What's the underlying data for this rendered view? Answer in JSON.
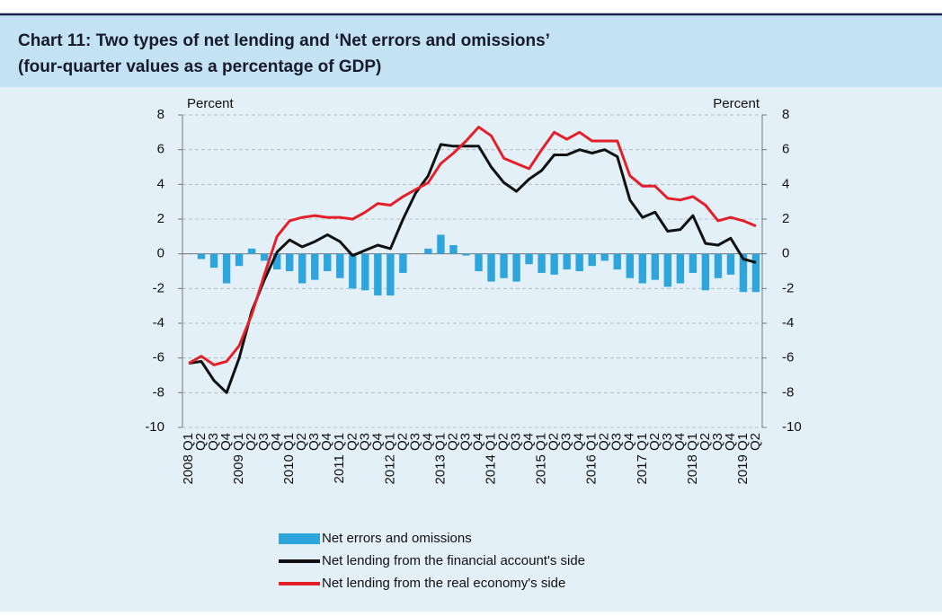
{
  "chart_data": {
    "type": "bar_line",
    "title": "Chart 11: Two types of net lending and ‘Net errors and omissions’",
    "subtitle": "(four-quarter values as a percentage of GDP)",
    "y_label": "Percent",
    "y2_label": "Percent",
    "categories": [
      "2008 Q1",
      "Q2",
      "Q3",
      "Q4",
      "2009 Q1",
      "Q2",
      "Q3",
      "Q4",
      "2010 Q1",
      "Q2",
      "Q3",
      "Q4",
      "2011 Q1",
      "Q2",
      "Q3",
      "Q4",
      "2012 Q1",
      "Q2",
      "Q3",
      "Q4",
      "2013 Q1",
      "Q2",
      "Q3",
      "Q4",
      "2014 Q1",
      "Q2",
      "Q3",
      "Q4",
      "2015 Q1",
      "Q2",
      "Q3",
      "Q4",
      "2016 Q1",
      "Q2",
      "Q3",
      "Q4",
      "2017 Q1",
      "Q2",
      "Q3",
      "Q4",
      "2018 Q1",
      "Q2",
      "Q3",
      "Q4",
      "2019 Q1",
      "Q2"
    ],
    "series": [
      {
        "name": "Net errors and omissions",
        "type": "bar",
        "color": "#2ea6dc",
        "values": [
          0,
          -0.3,
          -0.8,
          -1.7,
          -0.7,
          0.3,
          -0.4,
          -0.9,
          -1.0,
          -1.7,
          -1.5,
          -1.0,
          -1.4,
          -2.0,
          -2.1,
          -2.4,
          -2.4,
          -1.1,
          0,
          0.3,
          1.1,
          0.5,
          -0.1,
          -1.0,
          -1.6,
          -1.4,
          -1.6,
          -0.6,
          -1.1,
          -1.2,
          -0.9,
          -1.0,
          -0.7,
          -0.4,
          -0.9,
          -1.4,
          -1.7,
          -1.5,
          -1.9,
          -1.7,
          -1.1,
          -2.1,
          -1.4,
          -1.2,
          -2.2,
          -2.2
        ]
      },
      {
        "name": "Net lending from the financial account's side",
        "type": "line",
        "color": "#111111",
        "values": [
          -6.3,
          -6.2,
          -7.3,
          -8.0,
          -6.0,
          -3.3,
          -1.5,
          0.1,
          0.8,
          0.4,
          0.7,
          1.1,
          0.7,
          -0.1,
          0.2,
          0.5,
          0.3,
          2.0,
          3.5,
          4.5,
          6.3,
          6.2,
          6.2,
          6.2,
          5.0,
          4.1,
          3.6,
          4.3,
          4.8,
          5.7,
          5.7,
          6.0,
          5.8,
          6.0,
          5.6,
          3.1,
          2.1,
          2.4,
          1.3,
          1.4,
          2.2,
          0.6,
          0.5,
          0.9,
          -0.3,
          -0.5
        ]
      },
      {
        "name": "Net lending from the real economy's side",
        "type": "line",
        "color": "#e3202a",
        "values": [
          -6.3,
          -5.9,
          -6.4,
          -6.2,
          -5.3,
          -3.5,
          -1.2,
          1.0,
          1.9,
          2.1,
          2.2,
          2.1,
          2.1,
          2.0,
          2.4,
          2.9,
          2.8,
          3.3,
          3.7,
          4.1,
          5.2,
          5.8,
          6.5,
          7.3,
          6.8,
          5.5,
          5.2,
          4.9,
          6.0,
          7.0,
          6.6,
          7.0,
          6.5,
          6.5,
          6.5,
          4.5,
          3.9,
          3.9,
          3.2,
          3.1,
          3.3,
          2.8,
          1.9,
          2.1,
          1.9,
          1.6
        ]
      }
    ],
    "ylim": [
      -10,
      8
    ],
    "yticks": [
      -10,
      -8,
      -6,
      -4,
      -2,
      0,
      2,
      4,
      6,
      8
    ],
    "y2lim": [
      -10,
      8
    ],
    "y2ticks": [
      -10,
      -8,
      -6,
      -4,
      -2,
      0,
      2,
      4,
      6,
      8
    ],
    "grid": true,
    "legend": "bottom"
  }
}
